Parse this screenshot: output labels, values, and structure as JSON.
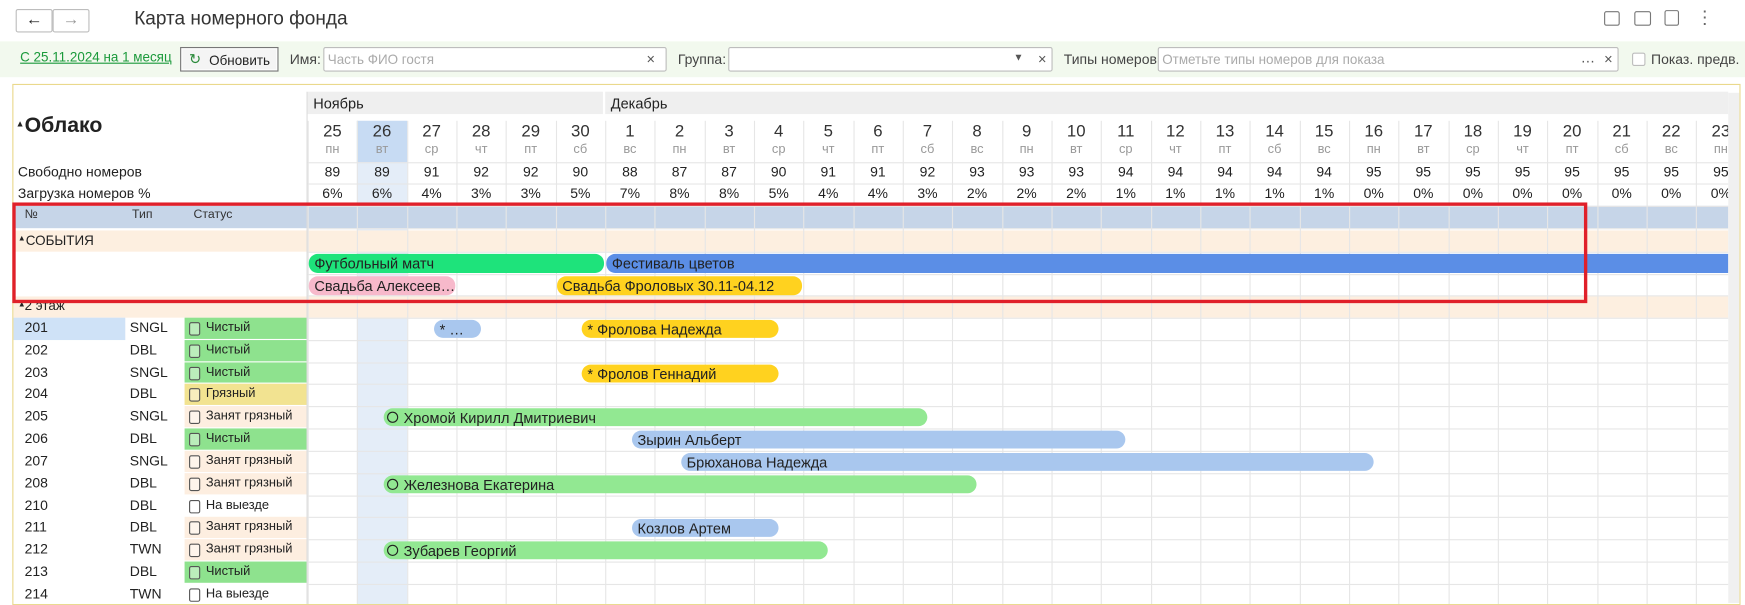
{
  "header": {
    "title": "Карта номерного фонда"
  },
  "toolbar": {
    "period": "С 25.11.2024 на 1 месяц",
    "refresh": "Обновить",
    "name_label": "Имя:",
    "name_placeholder": "Часть ФИО гостя",
    "group_label": "Группа:",
    "types_label": "Типы номеров:",
    "types_placeholder": "Отметьте типы номеров для показа",
    "show_label": "Показ. предв."
  },
  "grid": {
    "hotel": "Облако",
    "months": [
      "Ноябрь",
      "Декабрь"
    ],
    "days": [
      {
        "day": "25",
        "weekday": "пн",
        "free": "89",
        "load": "6%"
      },
      {
        "day": "26",
        "weekday": "вт",
        "free": "89",
        "load": "6%"
      },
      {
        "day": "27",
        "weekday": "ср",
        "free": "91",
        "load": "4%"
      },
      {
        "day": "28",
        "weekday": "чт",
        "free": "92",
        "load": "3%"
      },
      {
        "day": "29",
        "weekday": "пт",
        "free": "92",
        "load": "3%"
      },
      {
        "day": "30",
        "weekday": "сб",
        "free": "90",
        "load": "5%"
      },
      {
        "day": "1",
        "weekday": "вс",
        "free": "88",
        "load": "7%"
      },
      {
        "day": "2",
        "weekday": "пн",
        "free": "87",
        "load": "8%"
      },
      {
        "day": "3",
        "weekday": "вт",
        "free": "87",
        "load": "8%"
      },
      {
        "day": "4",
        "weekday": "ср",
        "free": "90",
        "load": "5%"
      },
      {
        "day": "5",
        "weekday": "чт",
        "free": "91",
        "load": "4%"
      },
      {
        "day": "6",
        "weekday": "пт",
        "free": "91",
        "load": "4%"
      },
      {
        "day": "7",
        "weekday": "сб",
        "free": "92",
        "load": "3%"
      },
      {
        "day": "8",
        "weekday": "вс",
        "free": "93",
        "load": "2%"
      },
      {
        "day": "9",
        "weekday": "пн",
        "free": "93",
        "load": "2%"
      },
      {
        "day": "10",
        "weekday": "вт",
        "free": "93",
        "load": "2%"
      },
      {
        "day": "11",
        "weekday": "ср",
        "free": "94",
        "load": "1%"
      },
      {
        "day": "12",
        "weekday": "чт",
        "free": "94",
        "load": "1%"
      },
      {
        "day": "13",
        "weekday": "пт",
        "free": "94",
        "load": "1%"
      },
      {
        "day": "14",
        "weekday": "сб",
        "free": "94",
        "load": "1%"
      },
      {
        "day": "15",
        "weekday": "вс",
        "free": "94",
        "load": "1%"
      },
      {
        "day": "16",
        "weekday": "пн",
        "free": "95",
        "load": "0%"
      },
      {
        "day": "17",
        "weekday": "вт",
        "free": "95",
        "load": "0%"
      },
      {
        "day": "18",
        "weekday": "ср",
        "free": "95",
        "load": "0%"
      },
      {
        "day": "19",
        "weekday": "чт",
        "free": "95",
        "load": "0%"
      },
      {
        "day": "20",
        "weekday": "пт",
        "free": "95",
        "load": "0%"
      },
      {
        "day": "21",
        "weekday": "сб",
        "free": "95",
        "load": "0%"
      },
      {
        "day": "22",
        "weekday": "вс",
        "free": "95",
        "load": "0%"
      },
      {
        "day": "23",
        "weekday": "пн",
        "free": "95",
        "load": "0%"
      }
    ],
    "free_label": "Свободно номеров",
    "load_label": "Загрузка номеров %",
    "columns": [
      "№",
      "Тип",
      "Статус"
    ],
    "events_label": "СОБЫТИЯ",
    "events": [
      [
        {
          "title": "Футбольный матч",
          "color": "#1ee37b"
        },
        {
          "title": "Фестиваль цветов",
          "color": "#5b8ee6"
        }
      ],
      [
        {
          "title": "Свадьба Алексеев…",
          "color": "#f7b9cb"
        },
        {
          "title": "Свадьба Фроловых 30.11-04.12",
          "color": "#ffd21f"
        }
      ]
    ],
    "floor": "2 этаж",
    "rooms": [
      {
        "number": "201",
        "type": "SNGL",
        "status": "Чистый",
        "status_color": "#8ee28e",
        "bookings": [
          {
            "guest": "* …",
            "color": "#a9c7ee"
          },
          {
            "guest": "* Фролова Надежда",
            "color": "#ffd21f"
          }
        ]
      },
      {
        "number": "202",
        "type": "DBL",
        "status": "Чистый",
        "status_color": "#8ee28e",
        "bookings": []
      },
      {
        "number": "203",
        "type": "SNGL",
        "status": "Чистый",
        "status_color": "#8ee28e",
        "bookings": [
          {
            "guest": "* Фролов Геннадий",
            "color": "#ffd21f"
          }
        ]
      },
      {
        "number": "204",
        "type": "DBL",
        "status": "Грязный",
        "status_color": "#f2e391",
        "bookings": []
      },
      {
        "number": "205",
        "type": "SNGL",
        "status": "Занят грязный",
        "status_color": "#fdeee0",
        "bookings": [
          {
            "guest": "Хромой Кирилл Дмитриевич",
            "color": "#92e892"
          }
        ]
      },
      {
        "number": "206",
        "type": "DBL",
        "status": "Чистый",
        "status_color": "#8ee28e",
        "bookings": [
          {
            "guest": "Зырин Альберт",
            "color": "#a9c7ee"
          }
        ]
      },
      {
        "number": "207",
        "type": "SNGL",
        "status": "Занят грязный",
        "status_color": "#fdeee0",
        "bookings": [
          {
            "guest": "Брюханова Надежда",
            "color": "#a9c7ee"
          }
        ]
      },
      {
        "number": "208",
        "type": "DBL",
        "status": "Занят грязный",
        "status_color": "#fdeee0",
        "bookings": [
          {
            "guest": "Железнова Екатерина",
            "color": "#92e892"
          }
        ]
      },
      {
        "number": "210",
        "type": "DBL",
        "status": "На выезде",
        "status_color": "#ffffff",
        "bookings": []
      },
      {
        "number": "211",
        "type": "DBL",
        "status": "Занят грязный",
        "status_color": "#fdeee0",
        "bookings": [
          {
            "guest": "Козлов Артем",
            "color": "#a9c7ee"
          }
        ]
      },
      {
        "number": "212",
        "type": "TWN",
        "status": "Занят грязный",
        "status_color": "#fdeee0",
        "bookings": [
          {
            "guest": "Зубарев Георгий",
            "color": "#92e892"
          }
        ]
      },
      {
        "number": "213",
        "type": "DBL",
        "status": "Чистый",
        "status_color": "#8ee28e",
        "bookings": []
      },
      {
        "number": "214",
        "type": "TWN",
        "status": "На выезде",
        "status_color": "#ffffff",
        "bookings": []
      }
    ]
  }
}
